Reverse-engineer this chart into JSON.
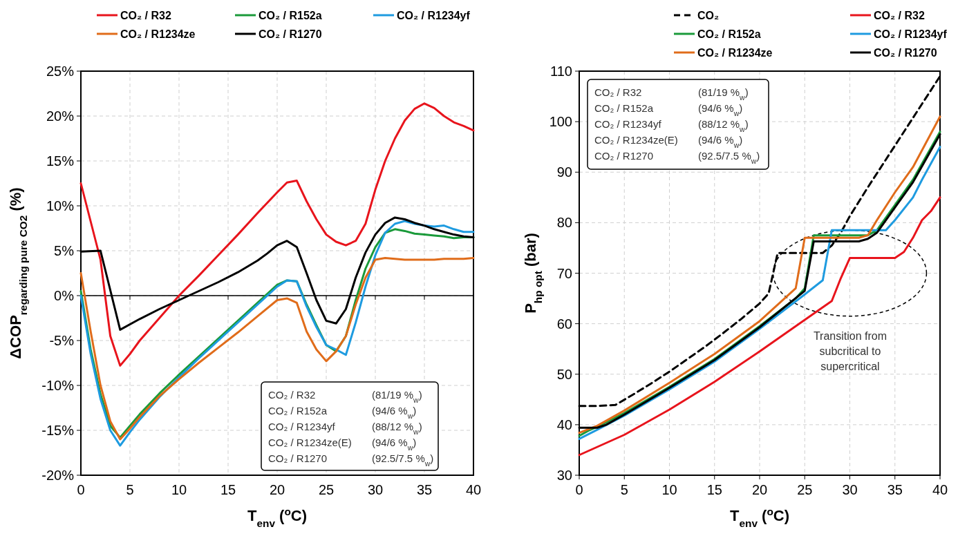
{
  "chart_data": [
    {
      "type": "line",
      "xlabel": "T$_{env}$ ($^{o}$C)",
      "ylabel": "ΔCOP$_{regarding pure CO2}$ (%)",
      "xlim": [
        0,
        40
      ],
      "xticks": [
        0,
        5,
        10,
        15,
        20,
        25,
        30,
        35,
        40
      ],
      "ylim": [
        -20,
        25
      ],
      "yticks": [
        {
          "value": -20,
          "label": "-20%"
        },
        {
          "value": -15,
          "label": "-15%"
        },
        {
          "value": -10,
          "label": "-10%"
        },
        {
          "value": -5,
          "label": "-5%"
        },
        {
          "value": 0,
          "label": "0%"
        },
        {
          "value": 5,
          "label": "5%"
        },
        {
          "value": 10,
          "label": "10%"
        },
        {
          "value": 15,
          "label": "15%"
        },
        {
          "value": 20,
          "label": "20%"
        },
        {
          "value": 25,
          "label": "25%"
        }
      ],
      "grid": true,
      "legend": "top",
      "line_style": "solid",
      "marker": "none",
      "annotations": [
        "CO₂ / R32",
        "CO₂ / R152a",
        "CO₂ / R1234yf",
        "CO₂ / R1234ze(E)",
        "CO₂ / R1270",
        "(81/19 %$_{w}$)",
        "(94/6 %$_{w}$)",
        "(88/12 %$_{w}$)",
        "(94/6 %$_{w}$)",
        "(92.5/7.5 %$_{w}$)"
      ],
      "series": [
        {
          "name": "CO₂ / R32",
          "color": "#e8141c",
          "x": [
            0,
            2,
            3,
            4,
            5,
            6,
            8,
            10,
            12,
            14,
            16,
            18,
            20,
            21,
            22,
            23,
            24,
            25,
            26,
            27,
            28,
            29,
            30,
            31,
            32,
            33,
            34,
            35,
            36,
            37,
            38,
            39,
            40
          ],
          "values": [
            12.5,
            4,
            -4.5,
            -7.8,
            -6.5,
            -5,
            -2.5,
            0,
            2.2,
            4.5,
            6.8,
            9.2,
            11.5,
            12.6,
            12.8,
            10.5,
            8.5,
            6.8,
            6,
            5.6,
            6.1,
            8,
            11.8,
            15,
            17.5,
            19.5,
            20.8,
            21.4,
            20.9,
            20,
            19.3,
            18.9,
            18.4
          ]
        },
        {
          "name": "CO₂ / R152a",
          "color": "#1a9a3a",
          "x": [
            0,
            1,
            2,
            3,
            4,
            5,
            6,
            8,
            10,
            12,
            14,
            16,
            18,
            20,
            21,
            22,
            23,
            24,
            25,
            26,
            27,
            28,
            29,
            30,
            31,
            32,
            33,
            34,
            35,
            36,
            37,
            38,
            39,
            40
          ],
          "values": [
            0.5,
            -6,
            -11,
            -14.5,
            -15.8,
            -14.5,
            -13.2,
            -10.9,
            -8.8,
            -6.8,
            -4.8,
            -2.8,
            -0.8,
            1.2,
            1.7,
            1.6,
            -1,
            -3.3,
            -5.5,
            -6.2,
            -4.5,
            -0.5,
            3,
            5.4,
            7,
            7.4,
            7.2,
            6.9,
            6.8,
            6.7,
            6.6,
            6.4,
            6.5,
            6.5
          ]
        },
        {
          "name": "CO₂ / R1234yf",
          "color": "#1e9be0",
          "x": [
            0,
            1,
            2,
            3,
            4,
            5,
            6,
            8,
            10,
            12,
            14,
            16,
            18,
            20,
            21,
            22,
            23,
            24,
            25,
            26,
            27,
            28,
            29,
            30,
            31,
            32,
            33,
            34,
            35,
            36,
            37,
            38,
            39,
            40
          ],
          "values": [
            0,
            -6.5,
            -11.5,
            -15,
            -16.7,
            -15.2,
            -13.8,
            -11.3,
            -9.1,
            -7,
            -5,
            -3,
            -1,
            1,
            1.7,
            1.6,
            -1.2,
            -3.5,
            -5.5,
            -6,
            -6.6,
            -3,
            1,
            4.5,
            7,
            8,
            8.3,
            8,
            7.8,
            7.7,
            7.8,
            7.4,
            7.1,
            7.1
          ]
        },
        {
          "name": "CO₂ / R1234ze",
          "color": "#e06c1a",
          "x": [
            0,
            1,
            2,
            3,
            4,
            5,
            6,
            8,
            10,
            12,
            14,
            16,
            18,
            20,
            21,
            22,
            23,
            24,
            25,
            26,
            27,
            28,
            29,
            30,
            31,
            32,
            33,
            34,
            35,
            36,
            37,
            38,
            39,
            40
          ],
          "values": [
            2.5,
            -4,
            -10,
            -14,
            -16,
            -14.8,
            -13.5,
            -11.2,
            -9.3,
            -7.5,
            -5.8,
            -4.1,
            -2.3,
            -0.5,
            -0.3,
            -0.8,
            -4,
            -6,
            -7.3,
            -6.2,
            -4.5,
            -1,
            2,
            4,
            4.2,
            4.1,
            4,
            4,
            4,
            4,
            4.1,
            4.1,
            4.1,
            4.2
          ]
        },
        {
          "name": "CO₂ / R1270",
          "color": "#000000",
          "x": [
            0,
            2,
            4,
            6,
            8,
            10,
            12,
            14,
            16,
            18,
            19,
            20,
            21,
            22,
            23,
            24,
            25,
            26,
            27,
            28,
            29,
            30,
            31,
            32,
            33,
            34,
            35,
            36,
            37,
            38,
            39,
            40
          ],
          "values": [
            4.9,
            5,
            -3.8,
            -2.6,
            -1.5,
            -0.5,
            0.5,
            1.5,
            2.6,
            3.9,
            4.7,
            5.6,
            6.1,
            5.4,
            2.5,
            -0.5,
            -2.8,
            -3.1,
            -1.5,
            2,
            4.8,
            6.8,
            8.1,
            8.7,
            8.5,
            8.1,
            7.8,
            7.4,
            7.1,
            6.8,
            6.6,
            6.5
          ]
        }
      ]
    },
    {
      "type": "line",
      "xlabel": "T$_{env}$ ($^{o}$C)",
      "ylabel": "P$_{hp opt}$ (bar)",
      "xlim": [
        0,
        40
      ],
      "xticks": [
        0,
        5,
        10,
        15,
        20,
        25,
        30,
        35,
        40
      ],
      "ylim": [
        30,
        110
      ],
      "yticks": [
        30,
        40,
        50,
        60,
        70,
        80,
        90,
        100,
        110
      ],
      "grid": true,
      "legend": "top",
      "line_style": "solid",
      "marker": "none",
      "annotations": [
        "CO₂ / R32",
        "CO₂ / R152a",
        "CO₂ / R1234yf",
        "CO₂ / R1234ze(E)",
        "CO₂ / R1270",
        "(81/19 %$_{w}$)",
        "(94/6 %$_{w}$)",
        "(88/12 %$_{w}$)",
        "(94/6 %$_{w}$)",
        "(92.5/7.5 %$_{w}$)",
        "Transition from subcritical to supercritical"
      ],
      "series": [
        {
          "name": "CO₂",
          "color": "#000000",
          "line_style": "dashed",
          "x": [
            0,
            2,
            4,
            6,
            8,
            10,
            12,
            14,
            16,
            18,
            20,
            21,
            21.5,
            22,
            24,
            26,
            27,
            28,
            29,
            30,
            32,
            34,
            36,
            38,
            40
          ],
          "values": [
            43.7,
            43.7,
            43.9,
            46,
            48.2,
            50.5,
            53,
            55.5,
            58.2,
            61,
            64,
            66,
            70,
            74,
            74,
            74,
            74,
            75.5,
            78,
            81.3,
            87,
            92.5,
            98,
            103.5,
            109
          ]
        },
        {
          "name": "CO₂ / R32",
          "color": "#e8141c",
          "x": [
            0,
            5,
            10,
            15,
            20,
            24,
            26,
            28,
            29,
            30,
            32,
            34,
            35,
            36,
            37,
            38,
            39,
            40
          ],
          "values": [
            34,
            38,
            43,
            48.5,
            54.5,
            59.5,
            62,
            64.5,
            69,
            73,
            73,
            73,
            73,
            74.2,
            77,
            80.5,
            82.3,
            85
          ]
        },
        {
          "name": "CO₂ / R152a",
          "color": "#1a9a3a",
          "x": [
            0,
            1,
            2,
            5,
            10,
            15,
            20,
            24,
            25,
            26,
            30,
            32,
            33,
            35,
            37,
            40
          ],
          "values": [
            37.8,
            38.8,
            39.6,
            42.3,
            47.5,
            53,
            59.5,
            65,
            67,
            77.5,
            77.5,
            77.5,
            78.5,
            83.5,
            88.5,
            98
          ]
        },
        {
          "name": "CO₂ / R1234yf",
          "color": "#1e9be0",
          "x": [
            0,
            2,
            5,
            10,
            15,
            20,
            25,
            27,
            28,
            30,
            34,
            35,
            37,
            38,
            40
          ],
          "values": [
            37.2,
            39,
            41.8,
            47,
            52.5,
            59,
            65.8,
            68.6,
            78.5,
            78.5,
            78.5,
            80.5,
            85,
            88.5,
            95
          ]
        },
        {
          "name": "CO₂ / R1234ze",
          "color": "#e06c1a",
          "x": [
            0,
            2,
            5,
            10,
            15,
            20,
            24,
            25,
            30,
            31,
            32,
            33,
            35,
            37,
            40
          ],
          "values": [
            38.4,
            39.8,
            42.8,
            48.3,
            54,
            60.5,
            67,
            77,
            77,
            77,
            77.5,
            80.5,
            86,
            91,
            101
          ]
        },
        {
          "name": "CO₂ / R1270",
          "color": "#000000",
          "x": [
            0,
            2,
            3,
            5,
            10,
            15,
            20,
            25,
            26,
            30,
            31,
            32,
            33,
            35,
            37,
            40
          ],
          "values": [
            39.4,
            39.4,
            40,
            42,
            47.3,
            52.8,
            59.3,
            66.5,
            76.3,
            76.3,
            76.3,
            76.8,
            78,
            83,
            88,
            97.5
          ]
        }
      ]
    }
  ]
}
